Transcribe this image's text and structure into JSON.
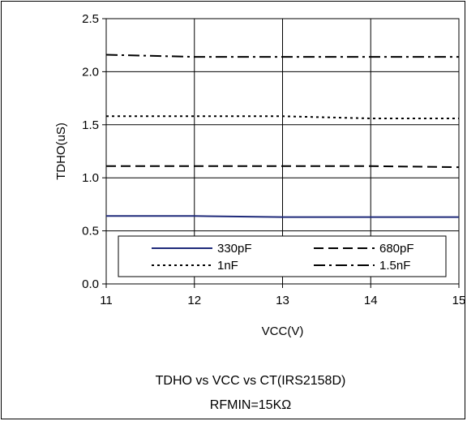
{
  "chart_data": {
    "type": "line",
    "title": "TDHO vs VCC vs CT(IRS2158D)",
    "subtitle": "RFMIN=15KΩ",
    "xlabel": "VCC(V)",
    "ylabel": "TDHO(uS)",
    "xlim": [
      11,
      15
    ],
    "ylim": [
      0,
      2.5
    ],
    "xticks": [
      "11",
      "12",
      "13",
      "14",
      "15"
    ],
    "yticks": [
      "0.0",
      "0.5",
      "1.0",
      "1.5",
      "2.0",
      "2.5"
    ],
    "grid": true,
    "legend_position": "bottom",
    "x": [
      11,
      12,
      13,
      14,
      15
    ],
    "series": [
      {
        "name": "330pF",
        "values": [
          0.64,
          0.64,
          0.63,
          0.63,
          0.63
        ],
        "color": "#1f2a7a",
        "dash": "solid"
      },
      {
        "name": "680pF",
        "values": [
          1.11,
          1.11,
          1.11,
          1.11,
          1.1
        ],
        "color": "#000000",
        "dash": "dash"
      },
      {
        "name": "1nF",
        "values": [
          1.58,
          1.58,
          1.58,
          1.56,
          1.56
        ],
        "color": "#000000",
        "dash": "dot"
      },
      {
        "name": "1.5nF",
        "values": [
          2.16,
          2.14,
          2.14,
          2.14,
          2.14
        ],
        "color": "#000000",
        "dash": "dashdot"
      }
    ]
  }
}
